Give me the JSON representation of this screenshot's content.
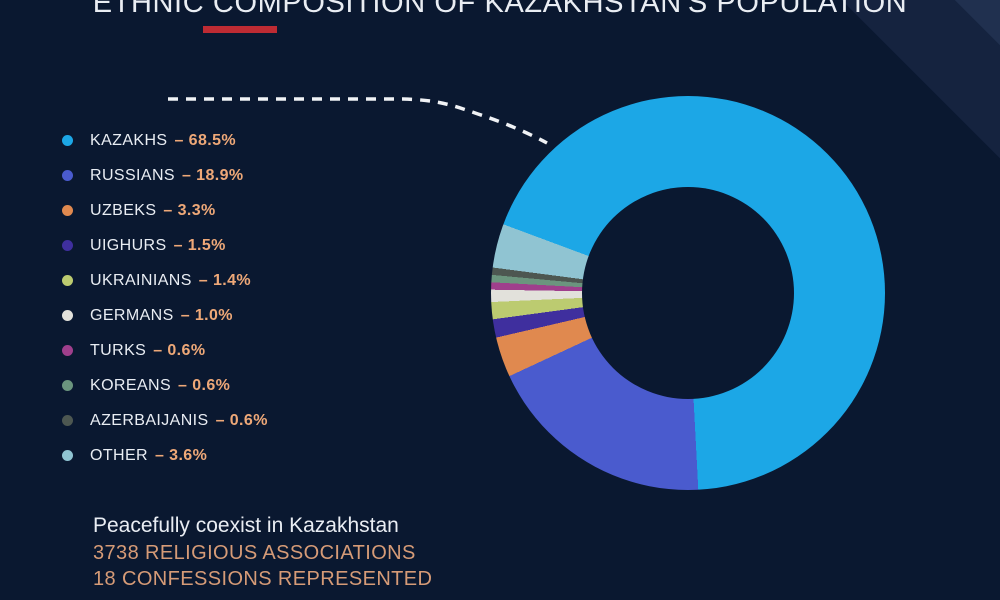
{
  "title": "ETHNIC COMPOSITION OF KAZAKHSTAN'S POPULATION",
  "colors": {
    "background": "#0A1830",
    "text_light": "#E9EDF3",
    "accent_red": "#BE2B33",
    "percent_orange": "#EEA878",
    "footer_orange": "#D69B77",
    "callout_line": "#F0F2F5",
    "shape_outer": "#15233F",
    "shape_inner": "#20304F"
  },
  "chart_data": {
    "type": "pie",
    "title": "ETHNIC COMPOSITION OF KAZAKHSTAN'S POPULATION",
    "donut": true,
    "donut_hole_ratio": 0.54,
    "start_angle_deg": -69.6,
    "legend_position": "left",
    "separator": "–",
    "value_suffix": "%",
    "segments": [
      {
        "label": "KAZAKHS",
        "value": 68.5,
        "display": "68.5%",
        "color": "#1CA7E6"
      },
      {
        "label": "RUSSIANS",
        "value": 18.9,
        "display": "18.9%",
        "color": "#4A5BCE"
      },
      {
        "label": "UZBEKS",
        "value": 3.3,
        "display": "3.3%",
        "color": "#E0894F"
      },
      {
        "label": "UIGHURS",
        "value": 1.5,
        "display": "1.5%",
        "color": "#3F2F9E"
      },
      {
        "label": "UKRAINIANS",
        "value": 1.4,
        "display": "1.4%",
        "color": "#BCCB70"
      },
      {
        "label": "GERMANS",
        "value": 1.0,
        "display": "1.0%",
        "color": "#E2E1DB"
      },
      {
        "label": "TURKS",
        "value": 0.6,
        "display": "0.6%",
        "color": "#9F3F8C"
      },
      {
        "label": "KOREANS",
        "value": 0.6,
        "display": "0.6%",
        "color": "#6B957E"
      },
      {
        "label": "AZERBAIJANIS",
        "value": 0.6,
        "display": "0.6%",
        "color": "#4D5751"
      },
      {
        "label": "OTHER",
        "value": 3.6,
        "display": "3.6%",
        "color": "#90C4D2"
      }
    ]
  },
  "footer": {
    "line1": "Peacefully coexist in Kazakhstan",
    "line2": "3738 RELIGIOUS ASSOCIATIONS",
    "line3": "18 CONFESSIONS REPRESENTED"
  }
}
